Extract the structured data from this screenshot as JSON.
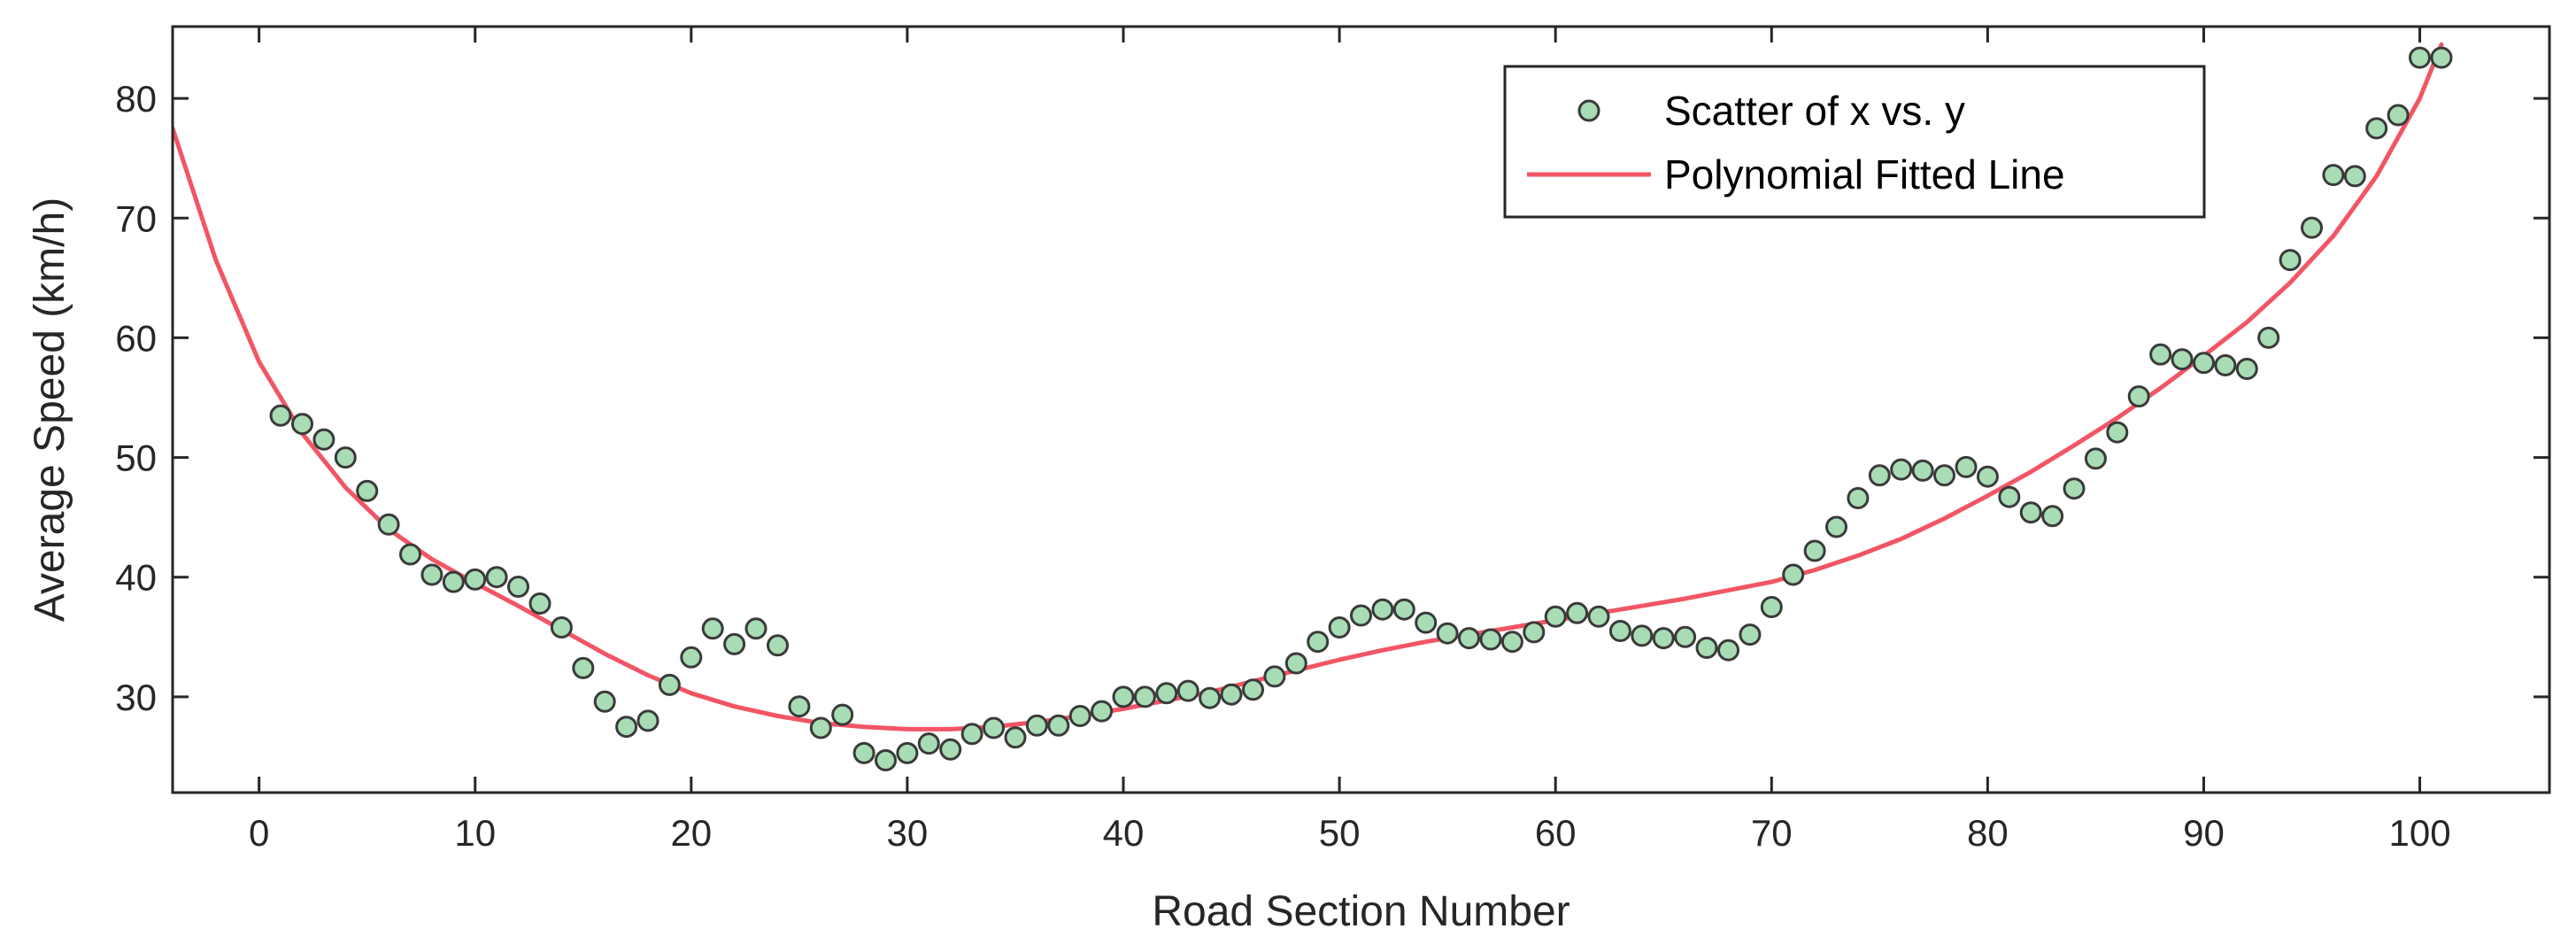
{
  "chart_data": {
    "type": "scatter",
    "title": "",
    "xlabel": "Road Section Number",
    "ylabel": "Average Speed (km/h)",
    "xlim": [
      -4,
      106
    ],
    "ylim": [
      22,
      86
    ],
    "xticks": [
      "0",
      "10",
      "20",
      "30",
      "40",
      "50",
      "60",
      "70",
      "80",
      "90",
      "100"
    ],
    "yticks": [
      "30",
      "40",
      "50",
      "60",
      "70",
      "80"
    ],
    "grid": false,
    "legend_position": "top-right",
    "series": [
      {
        "name": "Scatter of x vs. y",
        "kind": "scatter",
        "marker_fill": "#a8dcb4",
        "marker_edge": "#3a3a3a",
        "x": [
          1,
          2,
          3,
          4,
          5,
          6,
          7,
          8,
          9,
          10,
          11,
          12,
          13,
          14,
          15,
          16,
          17,
          18,
          19,
          20,
          21,
          22,
          23,
          24,
          25,
          26,
          27,
          28,
          29,
          30,
          31,
          32,
          33,
          34,
          35,
          36,
          37,
          38,
          39,
          40,
          41,
          42,
          43,
          44,
          45,
          46,
          47,
          48,
          49,
          50,
          51,
          52,
          53,
          54,
          55,
          56,
          57,
          58,
          59,
          60,
          61,
          62,
          63,
          64,
          65,
          66,
          67,
          68,
          69,
          70,
          71,
          72,
          73,
          74,
          75,
          76,
          77,
          78,
          79,
          80,
          81,
          82,
          83,
          84,
          85,
          86,
          87,
          88,
          89,
          90,
          91,
          92,
          93,
          94,
          95,
          96,
          97,
          98,
          99,
          100,
          101
        ],
        "y": [
          53.5,
          52.8,
          51.5,
          50.0,
          47.2,
          44.4,
          41.9,
          40.2,
          39.6,
          39.8,
          40.0,
          39.2,
          37.8,
          35.8,
          32.4,
          29.6,
          27.5,
          28.0,
          31.0,
          33.3,
          35.7,
          34.4,
          35.7,
          34.3,
          29.2,
          27.4,
          28.5,
          25.3,
          24.7,
          25.3,
          26.1,
          25.6,
          26.9,
          27.4,
          26.6,
          27.6,
          27.6,
          28.4,
          28.8,
          30.0,
          30.0,
          30.3,
          30.5,
          29.9,
          30.2,
          30.6,
          31.7,
          32.8,
          34.6,
          35.8,
          36.8,
          37.3,
          37.3,
          36.2,
          35.3,
          34.9,
          34.8,
          34.6,
          35.4,
          36.7,
          37.0,
          36.7,
          35.5,
          35.1,
          34.9,
          35.0,
          34.1,
          33.9,
          35.2,
          37.5,
          40.2,
          42.2,
          44.2,
          46.6,
          48.5,
          49.0,
          48.9,
          48.5,
          49.2,
          48.4,
          46.7,
          45.4,
          45.1,
          47.4,
          49.9,
          52.1,
          55.1,
          58.6,
          58.2,
          57.9,
          57.7,
          57.4,
          60.0,
          66.5,
          69.2,
          73.6,
          73.5,
          77.5,
          78.6,
          83.4,
          83.4
        ]
      },
      {
        "name": "Polynomial Fitted Line",
        "kind": "line",
        "color": "#f25564",
        "x": [
          -4,
          -2,
          0,
          2,
          4,
          6,
          8,
          10,
          12,
          14,
          16,
          18,
          20,
          22,
          24,
          26,
          28,
          30,
          32,
          34,
          36,
          38,
          40,
          42,
          44,
          46,
          48,
          50,
          52,
          54,
          56,
          58,
          60,
          62,
          64,
          66,
          68,
          70,
          72,
          74,
          76,
          78,
          80,
          82,
          84,
          86,
          88,
          90,
          92,
          94,
          96,
          98,
          100,
          101
        ],
        "y": [
          77.5,
          66.5,
          58.0,
          52.0,
          47.5,
          44.0,
          41.5,
          39.5,
          37.6,
          35.6,
          33.6,
          31.8,
          30.3,
          29.2,
          28.4,
          27.8,
          27.5,
          27.3,
          27.3,
          27.5,
          27.9,
          28.4,
          29.0,
          29.7,
          30.4,
          31.3,
          32.2,
          33.1,
          33.9,
          34.6,
          35.2,
          35.8,
          36.4,
          37.0,
          37.6,
          38.2,
          38.9,
          39.6,
          40.6,
          41.8,
          43.2,
          44.9,
          46.8,
          48.8,
          51.0,
          53.3,
          55.8,
          58.5,
          61.3,
          64.6,
          68.5,
          73.5,
          80.0,
          84.5
        ]
      }
    ]
  }
}
